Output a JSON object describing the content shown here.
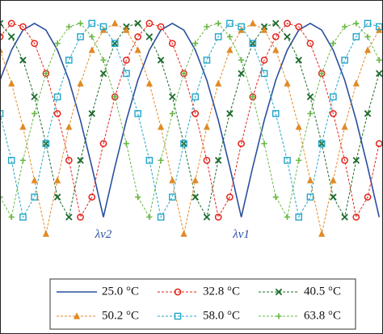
{
  "chart_data": {
    "type": "line",
    "x": [
      0,
      3,
      6,
      9,
      12,
      15,
      18,
      21,
      24,
      27,
      30,
      33,
      36,
      39,
      42,
      45,
      48,
      51,
      54,
      57,
      60,
      63,
      66,
      69,
      72,
      75,
      78,
      81,
      84,
      87,
      90,
      93,
      96,
      99
    ],
    "xlim": [
      0,
      100
    ],
    "ylim": [
      0,
      1
    ],
    "legend": "bottom",
    "annotations": [
      "λv2",
      "λv1"
    ],
    "series": [
      {
        "name": "25.0 °C",
        "color": "#2a4f9e",
        "marker": "none",
        "values": [
          0.76,
          0.85,
          0.91,
          0.93,
          0.91,
          0.85,
          0.76,
          0.64,
          0.5,
          0.35,
          0.5,
          0.64,
          0.76,
          0.85,
          0.91,
          0.93,
          0.91,
          0.85,
          0.76,
          0.64,
          0.5,
          0.35,
          0.5,
          0.64,
          0.76,
          0.85,
          0.91,
          0.93,
          0.91,
          0.85,
          0.76,
          0.64,
          0.5,
          0.35
        ]
      },
      {
        "name": "32.8 °C",
        "color": "#e3231b",
        "marker": "circle",
        "values": [
          0.89,
          0.93,
          0.92,
          0.87,
          0.78,
          0.66,
          0.52,
          0.35,
          0.41,
          0.57,
          0.71,
          0.82,
          0.89,
          0.93,
          0.92,
          0.87,
          0.78,
          0.66,
          0.52,
          0.35,
          0.41,
          0.57,
          0.71,
          0.82,
          0.89,
          0.93,
          0.92,
          0.87,
          0.78,
          0.66,
          0.52,
          0.35,
          0.41,
          0.57
        ]
      },
      {
        "name": "40.5 °C",
        "color": "#1c6b2c",
        "marker": "x",
        "values": [
          0.93,
          0.89,
          0.82,
          0.71,
          0.57,
          0.41,
          0.35,
          0.52,
          0.66,
          0.78,
          0.87,
          0.92,
          0.93,
          0.89,
          0.82,
          0.71,
          0.57,
          0.41,
          0.35,
          0.52,
          0.66,
          0.78,
          0.87,
          0.92,
          0.93,
          0.89,
          0.82,
          0.71,
          0.57,
          0.41,
          0.35,
          0.52,
          0.66,
          0.78
        ]
      },
      {
        "name": "50.2 °C",
        "color": "#e08a24",
        "marker": "triangle",
        "values": [
          0.85,
          0.75,
          0.62,
          0.46,
          0.3,
          0.46,
          0.62,
          0.75,
          0.85,
          0.91,
          0.93,
          0.91,
          0.85,
          0.75,
          0.62,
          0.46,
          0.3,
          0.46,
          0.62,
          0.75,
          0.85,
          0.91,
          0.93,
          0.91,
          0.85,
          0.75,
          0.62,
          0.46,
          0.3,
          0.46,
          0.62,
          0.75,
          0.85,
          0.91
        ]
      },
      {
        "name": "58.0 °C",
        "color": "#22a6c9",
        "marker": "square",
        "values": [
          0.66,
          0.52,
          0.35,
          0.41,
          0.57,
          0.71,
          0.82,
          0.89,
          0.93,
          0.92,
          0.87,
          0.78,
          0.66,
          0.52,
          0.35,
          0.41,
          0.57,
          0.71,
          0.82,
          0.89,
          0.93,
          0.92,
          0.87,
          0.78,
          0.66,
          0.52,
          0.35,
          0.41,
          0.57,
          0.71,
          0.82,
          0.89,
          0.93,
          0.92
        ]
      },
      {
        "name": "63.8 °C",
        "color": "#69b845",
        "marker": "plus",
        "values": [
          0.41,
          0.35,
          0.52,
          0.66,
          0.78,
          0.87,
          0.92,
          0.93,
          0.89,
          0.82,
          0.71,
          0.57,
          0.41,
          0.35,
          0.52,
          0.66,
          0.78,
          0.87,
          0.92,
          0.93,
          0.89,
          0.82,
          0.71,
          0.57,
          0.41,
          0.35,
          0.52,
          0.66,
          0.78,
          0.87,
          0.92,
          0.93,
          0.89,
          0.82
        ]
      }
    ]
  }
}
